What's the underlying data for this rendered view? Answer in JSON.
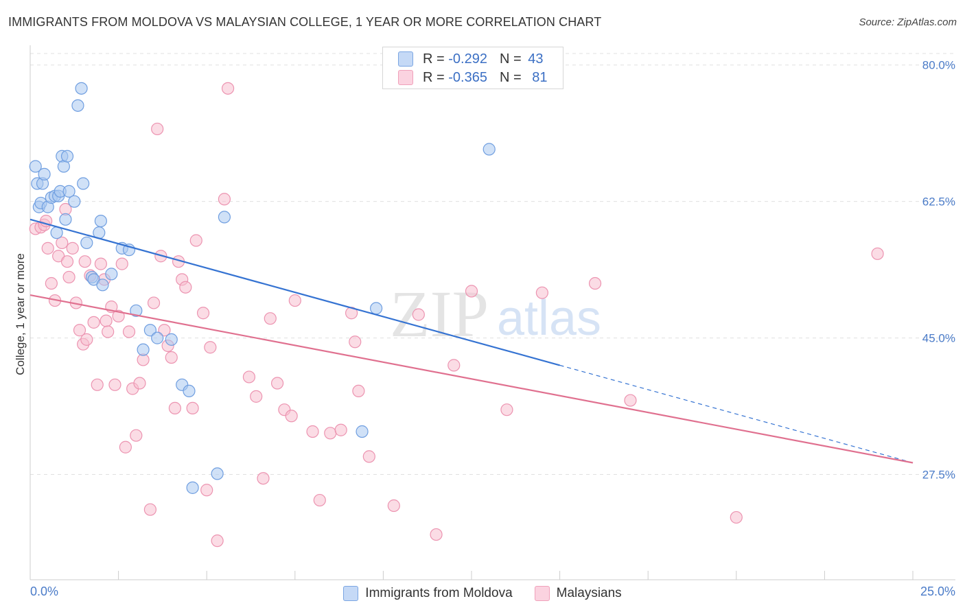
{
  "chart_data": {
    "type": "scatter",
    "title": "IMMIGRANTS FROM MOLDOVA VS MALAYSIAN COLLEGE, 1 YEAR OR MORE CORRELATION CHART",
    "source": "Source: ZipAtlas.com",
    "watermark": {
      "zip": "ZIP",
      "atlas": "atlas"
    },
    "xlabel": "",
    "ylabel": "College, 1 year or more",
    "xlim": [
      0,
      25
    ],
    "ylim": [
      14,
      82
    ],
    "x_tick_labels": {
      "left": "0.0%",
      "right": "25.0%"
    },
    "y_ticks": [
      {
        "value": 80.0,
        "label": "80.0%"
      },
      {
        "value": 62.5,
        "label": "62.5%"
      },
      {
        "value": 45.0,
        "label": "45.0%"
      },
      {
        "value": 27.5,
        "label": "27.5%"
      }
    ],
    "colors": {
      "blue_fill": "#aac8f0",
      "blue_stroke": "#6f9ee0",
      "blue_line": "#3573d2",
      "pink_fill": "#f8bfd0",
      "pink_stroke": "#ec93b0",
      "pink_line": "#e0708f",
      "grid": "#e0e0e0",
      "axis": "#cccccc"
    },
    "series": [
      {
        "name": "Immigrants from Moldova",
        "R": "-0.292",
        "N": "43",
        "trend": {
          "x0": 0.0,
          "y0": 60.2,
          "x1": 15.0,
          "y1": 41.5,
          "dash_x1": 25.0,
          "dash_y1": 29.0
        },
        "points": [
          [
            0.15,
            67.0
          ],
          [
            0.2,
            64.8
          ],
          [
            0.25,
            61.8
          ],
          [
            0.3,
            62.3
          ],
          [
            0.35,
            64.8
          ],
          [
            0.4,
            66.0
          ],
          [
            0.5,
            61.8
          ],
          [
            0.6,
            63.0
          ],
          [
            0.7,
            63.2
          ],
          [
            0.75,
            58.5
          ],
          [
            0.8,
            63.2
          ],
          [
            0.85,
            63.8
          ],
          [
            0.9,
            68.3
          ],
          [
            0.95,
            67.0
          ],
          [
            1.0,
            60.2
          ],
          [
            1.05,
            68.3
          ],
          [
            1.1,
            63.8
          ],
          [
            1.25,
            62.5
          ],
          [
            1.35,
            74.8
          ],
          [
            1.45,
            77.0
          ],
          [
            1.5,
            64.8
          ],
          [
            1.6,
            57.2
          ],
          [
            1.75,
            52.8
          ],
          [
            1.8,
            52.5
          ],
          [
            1.95,
            58.5
          ],
          [
            2.0,
            60.0
          ],
          [
            2.05,
            51.8
          ],
          [
            2.3,
            53.2
          ],
          [
            2.6,
            56.5
          ],
          [
            2.8,
            56.3
          ],
          [
            3.0,
            48.5
          ],
          [
            3.2,
            43.5
          ],
          [
            3.4,
            46.0
          ],
          [
            3.6,
            45.0
          ],
          [
            4.0,
            44.8
          ],
          [
            4.3,
            39.0
          ],
          [
            4.5,
            38.2
          ],
          [
            4.6,
            25.8
          ],
          [
            5.3,
            27.6
          ],
          [
            5.5,
            60.5
          ],
          [
            9.4,
            33.0
          ],
          [
            9.8,
            48.8
          ],
          [
            13.0,
            69.2
          ]
        ]
      },
      {
        "name": "Malaysians",
        "R": "-0.365",
        "N": "81",
        "trend": {
          "x0": 0.0,
          "y0": 50.5,
          "x1": 25.0,
          "y1": 29.0
        },
        "points": [
          [
            0.15,
            59.0
          ],
          [
            0.3,
            59.2
          ],
          [
            0.4,
            59.5
          ],
          [
            0.45,
            60.0
          ],
          [
            0.5,
            56.5
          ],
          [
            0.6,
            52.0
          ],
          [
            0.7,
            49.8
          ],
          [
            0.8,
            55.5
          ],
          [
            0.9,
            57.2
          ],
          [
            1.0,
            61.5
          ],
          [
            1.05,
            54.8
          ],
          [
            1.1,
            52.8
          ],
          [
            1.2,
            56.5
          ],
          [
            1.3,
            49.5
          ],
          [
            1.4,
            46.0
          ],
          [
            1.5,
            44.2
          ],
          [
            1.55,
            54.8
          ],
          [
            1.6,
            44.8
          ],
          [
            1.7,
            53.0
          ],
          [
            1.8,
            47.0
          ],
          [
            1.9,
            39.0
          ],
          [
            2.0,
            54.5
          ],
          [
            2.1,
            52.5
          ],
          [
            2.15,
            47.2
          ],
          [
            2.2,
            45.8
          ],
          [
            2.3,
            49.0
          ],
          [
            2.4,
            39.0
          ],
          [
            2.5,
            47.8
          ],
          [
            2.6,
            54.5
          ],
          [
            2.7,
            31.0
          ],
          [
            2.8,
            45.8
          ],
          [
            2.9,
            38.5
          ],
          [
            3.0,
            32.5
          ],
          [
            3.1,
            39.2
          ],
          [
            3.2,
            42.2
          ],
          [
            3.4,
            23.0
          ],
          [
            3.5,
            49.5
          ],
          [
            3.6,
            71.8
          ],
          [
            3.7,
            55.5
          ],
          [
            3.8,
            46.0
          ],
          [
            3.9,
            44.0
          ],
          [
            4.0,
            42.5
          ],
          [
            4.1,
            36.0
          ],
          [
            4.2,
            54.8
          ],
          [
            4.3,
            52.5
          ],
          [
            4.4,
            51.5
          ],
          [
            4.6,
            36.0
          ],
          [
            4.7,
            57.5
          ],
          [
            4.9,
            48.2
          ],
          [
            5.0,
            25.5
          ],
          [
            5.1,
            43.8
          ],
          [
            5.3,
            19.0
          ],
          [
            5.5,
            62.8
          ],
          [
            5.6,
            77.0
          ],
          [
            6.2,
            40.0
          ],
          [
            6.4,
            37.5
          ],
          [
            6.6,
            27.0
          ],
          [
            6.8,
            47.5
          ],
          [
            7.0,
            39.2
          ],
          [
            7.2,
            35.8
          ],
          [
            7.4,
            35.0
          ],
          [
            7.5,
            49.8
          ],
          [
            8.0,
            33.0
          ],
          [
            8.2,
            24.2
          ],
          [
            8.5,
            32.8
          ],
          [
            8.8,
            33.2
          ],
          [
            9.1,
            48.2
          ],
          [
            9.2,
            44.5
          ],
          [
            9.3,
            38.2
          ],
          [
            9.6,
            29.8
          ],
          [
            10.3,
            23.5
          ],
          [
            11.0,
            48.0
          ],
          [
            11.5,
            19.8
          ],
          [
            12.0,
            41.5
          ],
          [
            12.5,
            51.0
          ],
          [
            13.5,
            35.8
          ],
          [
            14.5,
            50.8
          ],
          [
            16.0,
            52.0
          ],
          [
            17.0,
            37.0
          ],
          [
            20.0,
            22.0
          ],
          [
            24.0,
            55.8
          ]
        ]
      }
    ]
  }
}
